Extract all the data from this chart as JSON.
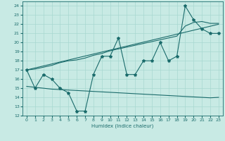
{
  "xlabel": "Humidex (Indice chaleur)",
  "xlim": [
    -0.5,
    23.5
  ],
  "ylim": [
    12,
    24.5
  ],
  "yticks": [
    12,
    13,
    14,
    15,
    16,
    17,
    18,
    19,
    20,
    21,
    22,
    23,
    24
  ],
  "xticks": [
    0,
    1,
    2,
    3,
    4,
    5,
    6,
    7,
    8,
    9,
    10,
    11,
    12,
    13,
    14,
    15,
    16,
    17,
    18,
    19,
    20,
    21,
    22,
    23
  ],
  "bg_color": "#c8eae4",
  "line_color": "#1a6b6b",
  "grid_color": "#a8d8d0",
  "main_data": [
    17,
    15,
    16.5,
    16,
    15,
    14.5,
    12.5,
    12.5,
    16.5,
    18.5,
    18.5,
    20.5,
    16.5,
    16.5,
    18,
    18,
    20,
    18,
    18.5,
    24,
    22.5,
    21.5,
    21,
    21
  ],
  "upper_line": [
    17,
    17.1,
    17.3,
    17.5,
    17.8,
    18.0,
    18.1,
    18.3,
    18.6,
    18.8,
    19.1,
    19.3,
    19.5,
    19.7,
    19.9,
    20.1,
    20.3,
    20.5,
    20.7,
    21.8,
    22.2,
    22.3,
    22.1,
    22.1
  ],
  "lower_line": [
    15.2,
    15.1,
    15.0,
    14.9,
    14.85,
    14.8,
    14.75,
    14.7,
    14.65,
    14.6,
    14.55,
    14.5,
    14.45,
    14.4,
    14.35,
    14.3,
    14.25,
    14.2,
    14.15,
    14.1,
    14.05,
    14.0,
    13.95,
    14.0
  ],
  "trend_x0": 0,
  "trend_y0": 17,
  "trend_x1": 23,
  "trend_y1": 22
}
